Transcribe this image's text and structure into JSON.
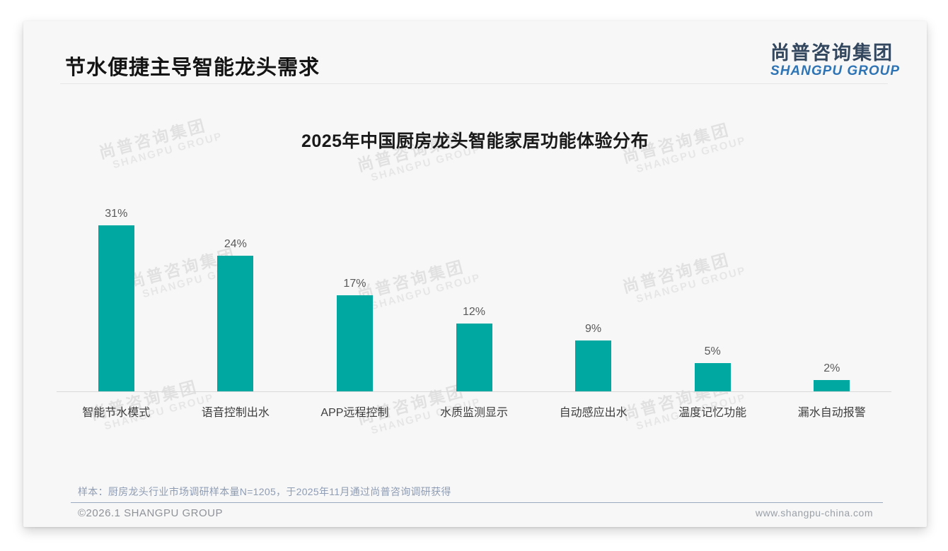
{
  "page": {
    "title": "节水便捷主导智能龙头需求"
  },
  "logo": {
    "cn": "尚普咨询集团",
    "en": "SHANGPU GROUP",
    "cn_color": "#33475f",
    "en_color": "#2e74b5"
  },
  "watermark": {
    "cn": "尚普咨询集团",
    "en": "SHANGPU GROUP"
  },
  "chart_data": {
    "type": "bar",
    "title": "2025年中国厨房龙头智能家居功能体验分布",
    "categories": [
      "智能节水模式",
      "语音控制出水",
      "APP远程控制",
      "水质监测显示",
      "自动感应出水",
      "温度记忆功能",
      "漏水自动报警"
    ],
    "values": [
      31,
      24,
      17,
      12,
      9,
      5,
      2
    ],
    "value_labels": [
      "31%",
      "24%",
      "17%",
      "12%",
      "9%",
      "5%",
      "2%"
    ],
    "unit": "%",
    "bar_color": "#00a8a2",
    "axis_line_color": "#d9d9d9",
    "ylim": [
      0,
      32.5
    ],
    "grid": false,
    "legend": "none"
  },
  "footnote": "样本：厨房龙头行业市场调研样本量N=1205，于2025年11月通过尚普咨询调研获得",
  "footer": {
    "left": "©2026.1 SHANGPU GROUP",
    "right": "www.shangpu-china.com"
  }
}
